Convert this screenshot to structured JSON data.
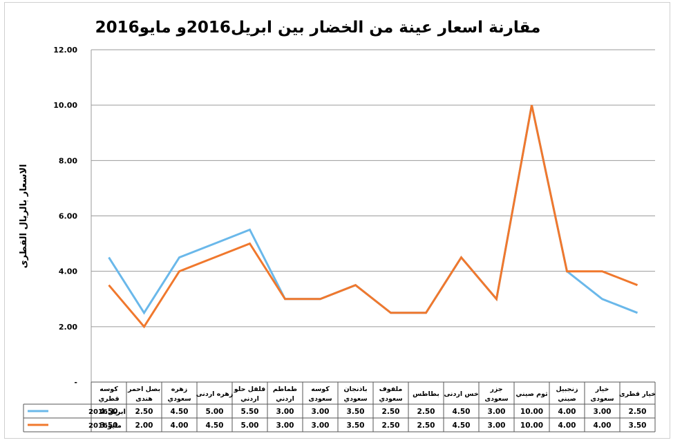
{
  "chart_data": {
    "type": "line",
    "title": "مقارنة اسعار عينة من الخضار بين ابريل2016و مايو2016",
    "ylabel": "الاسعار بالريال القطرى",
    "xlabel": "",
    "ylim": [
      0,
      12
    ],
    "yticks": [
      "-",
      "2.00",
      "4.00",
      "6.00",
      "8.00",
      "10.00",
      "12.00"
    ],
    "grid": true,
    "legend_placement": "table-left",
    "categories": [
      [
        "كوسه",
        "قطري"
      ],
      [
        "بصل احمر",
        "هندى"
      ],
      [
        "زهره",
        "سعودي"
      ],
      [
        "زهره اردنى"
      ],
      [
        "فلفل حلو",
        "اردني"
      ],
      [
        "طماطم",
        "اردني"
      ],
      [
        "كوسه",
        "سعودى"
      ],
      [
        "باذنجان",
        "سعودي"
      ],
      [
        "ملفوف",
        "سعودي"
      ],
      [
        "بطاطس"
      ],
      [
        "خس اردنى"
      ],
      [
        "جزر",
        "سعودى"
      ],
      [
        "ثوم صيني"
      ],
      [
        "زنجبيل",
        "صيني"
      ],
      [
        "خيار",
        "سعودى"
      ],
      [
        "خيار قطرى"
      ]
    ],
    "series": [
      {
        "name": "ابريل2016",
        "color": "#6ab8ea",
        "values": [
          4.5,
          2.5,
          4.5,
          5.0,
          5.5,
          3.0,
          3.0,
          3.5,
          2.5,
          2.5,
          4.5,
          3.0,
          10.0,
          4.0,
          3.0,
          2.5
        ],
        "labels": [
          "4.50",
          "2.50",
          "4.50",
          "5.00",
          "5.50",
          "3.00",
          "3.00",
          "3.50",
          "2.50",
          "2.50",
          "4.50",
          "3.00",
          "10.00",
          "4.00",
          "3.00",
          "2.50"
        ]
      },
      {
        "name": "مايو2016",
        "color": "#f0782d",
        "values": [
          3.5,
          2.0,
          4.0,
          4.5,
          5.0,
          3.0,
          3.0,
          3.5,
          2.5,
          2.5,
          4.5,
          3.0,
          10.0,
          4.0,
          4.0,
          3.5
        ],
        "labels": [
          "3.50",
          "2.00",
          "4.00",
          "4.50",
          "5.00",
          "3.00",
          "3.00",
          "3.50",
          "2.50",
          "2.50",
          "4.50",
          "3.00",
          "10.00",
          "4.00",
          "4.00",
          "3.50"
        ]
      }
    ]
  }
}
